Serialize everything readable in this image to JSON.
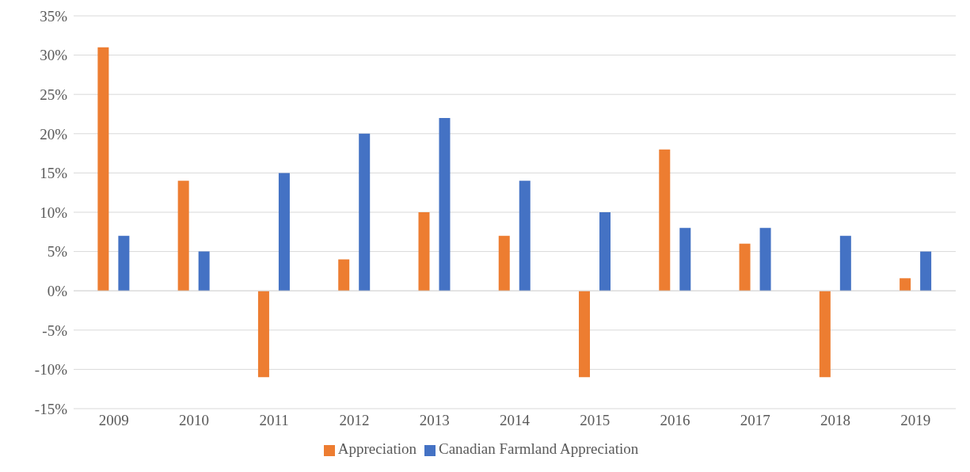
{
  "chart_data": {
    "type": "bar",
    "categories": [
      "2009",
      "2010",
      "2011",
      "2012",
      "2013",
      "2014",
      "2015",
      "2016",
      "2017",
      "2018",
      "2019"
    ],
    "series": [
      {
        "name": "Appreciation",
        "color": "#ed7d31",
        "values": [
          31,
          14,
          -11,
          4,
          10,
          7,
          -11,
          18,
          6,
          -11,
          1.6
        ]
      },
      {
        "name": "Canadian Farmland Appreciation",
        "color": "#4472c4",
        "values": [
          7,
          5,
          15,
          20,
          22,
          14,
          10,
          8,
          8,
          7,
          5
        ]
      }
    ],
    "ylim": [
      -15,
      35
    ],
    "yticks": [
      {
        "value": -15,
        "label": "-15%"
      },
      {
        "value": -10,
        "label": "-10%"
      },
      {
        "value": -5,
        "label": "-5%"
      },
      {
        "value": 0,
        "label": "0%"
      },
      {
        "value": 5,
        "label": "5%"
      },
      {
        "value": 10,
        "label": "10%"
      },
      {
        "value": 15,
        "label": "15%"
      },
      {
        "value": 20,
        "label": "20%"
      },
      {
        "value": 25,
        "label": "25%"
      },
      {
        "value": 30,
        "label": "30%"
      },
      {
        "value": 35,
        "label": "35%"
      }
    ],
    "grid": "y",
    "legend": "bottom"
  }
}
